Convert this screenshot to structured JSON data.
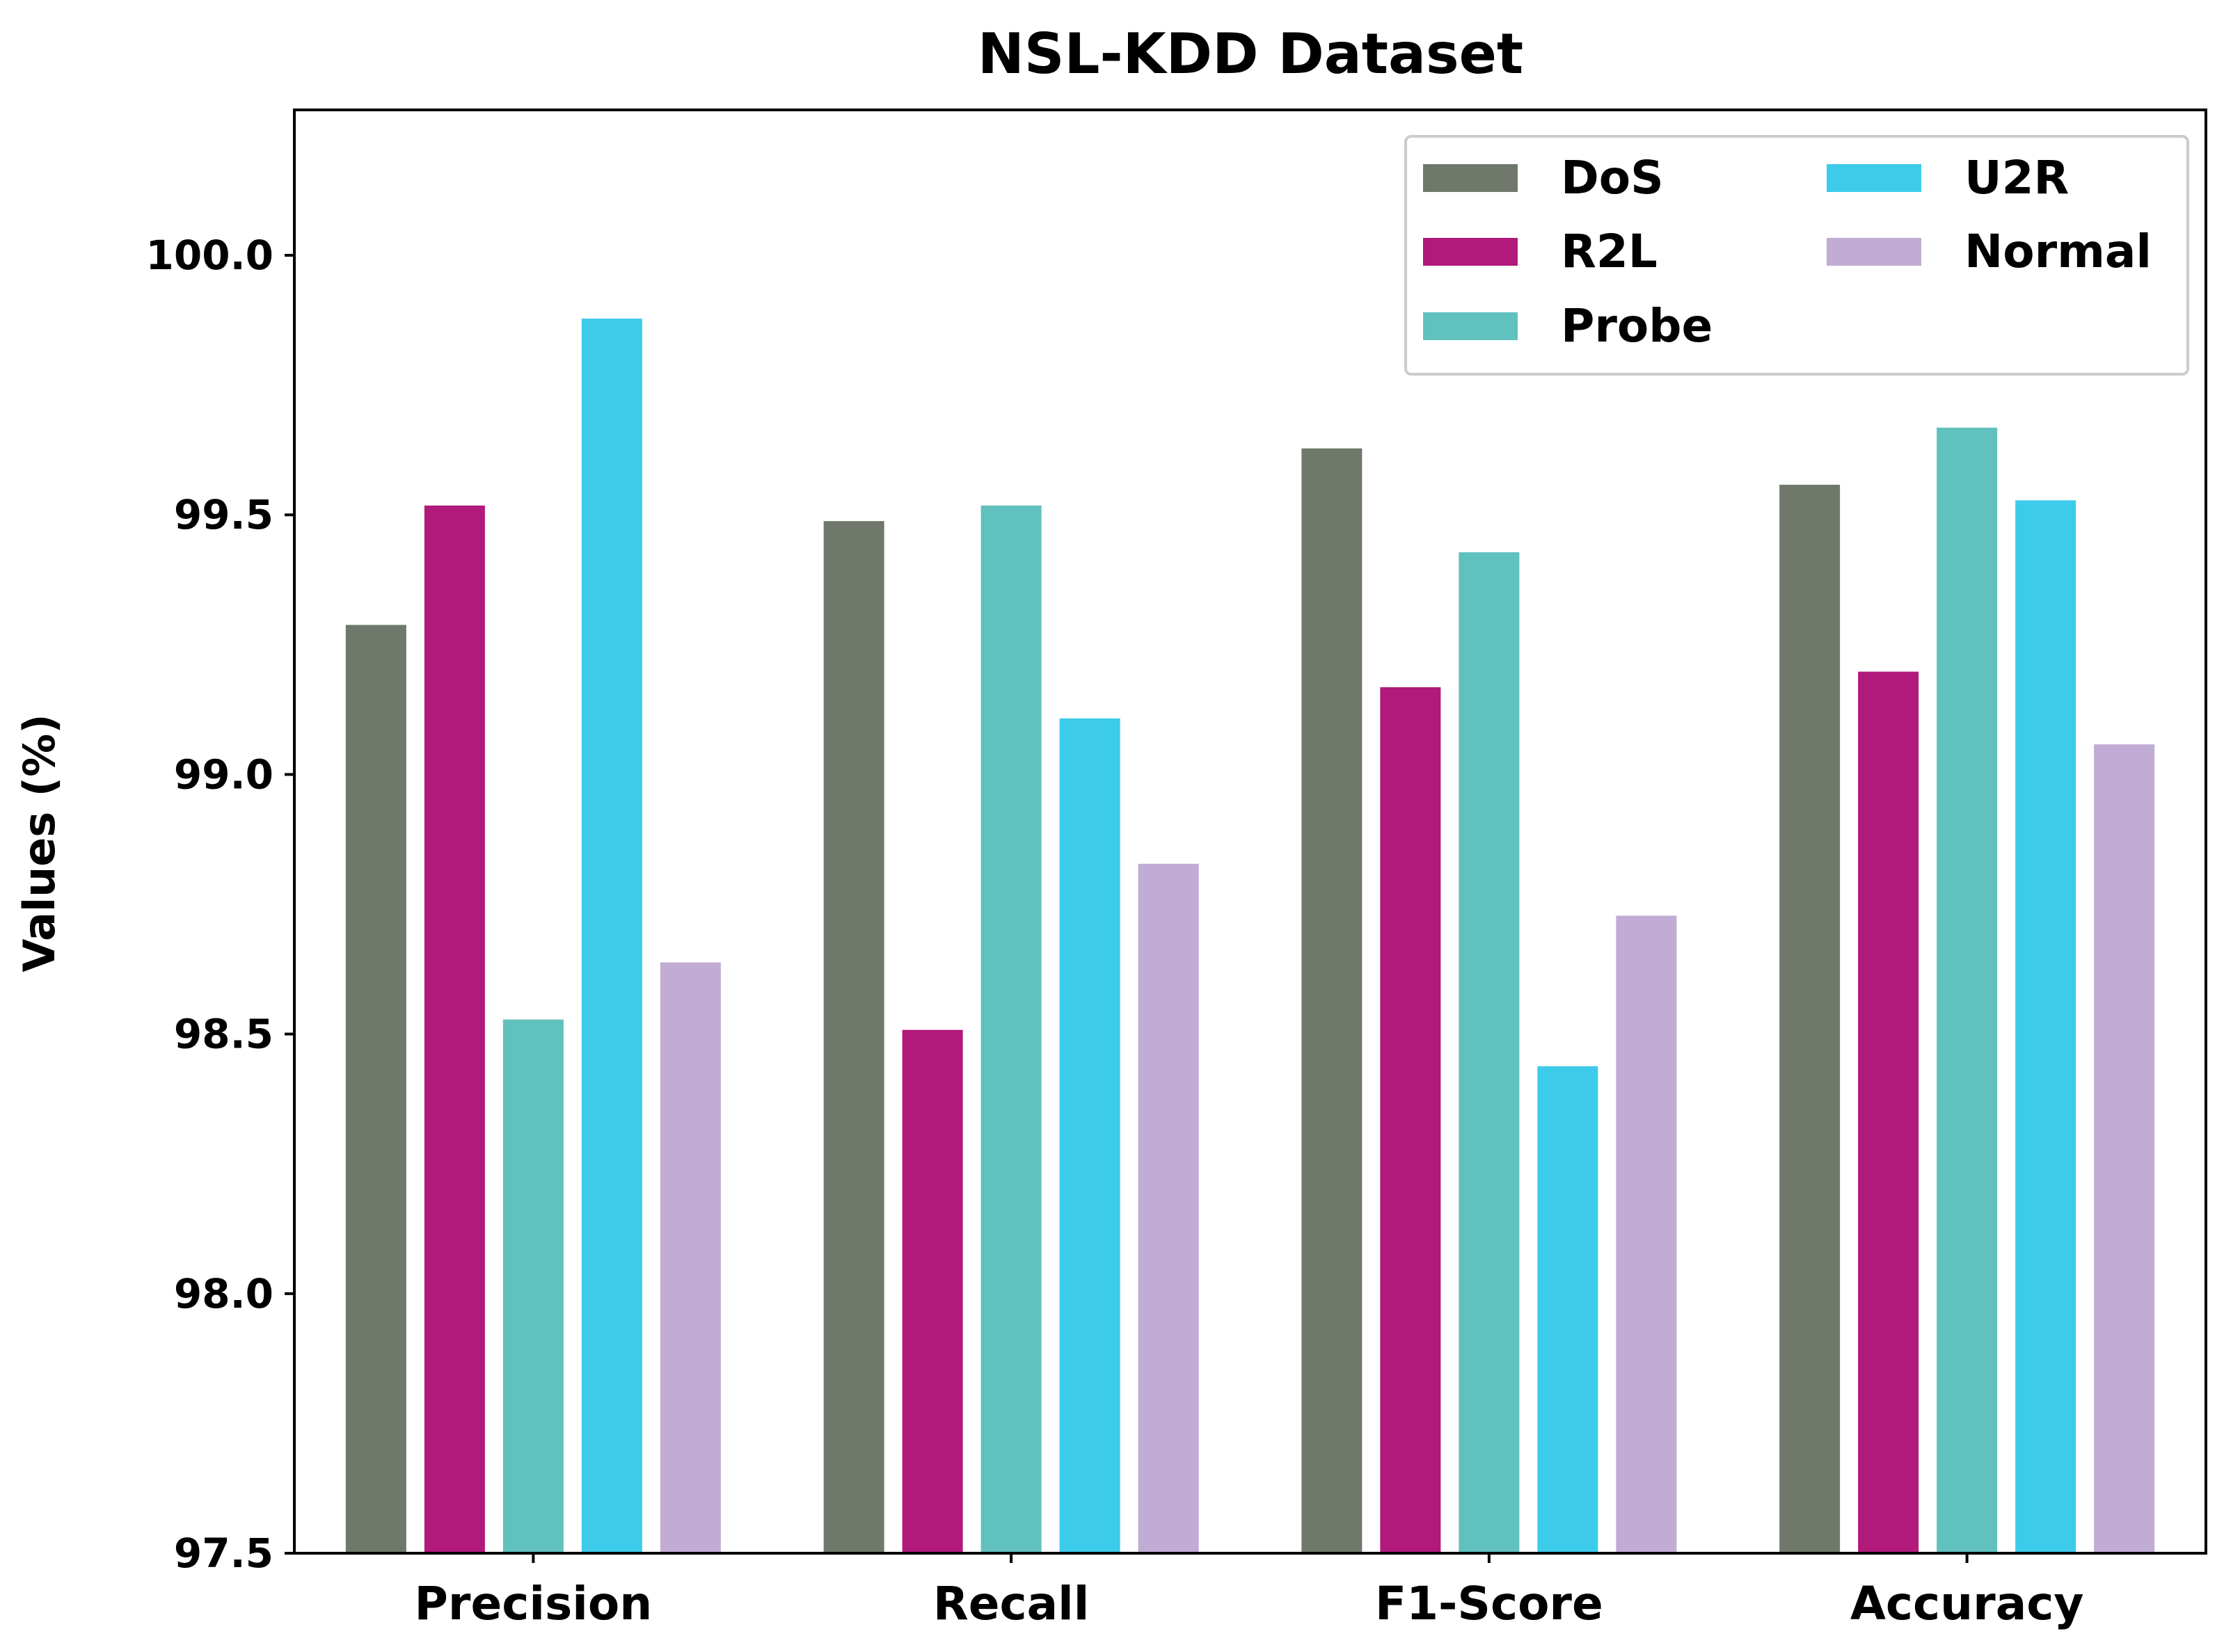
{
  "chart_data": {
    "type": "bar",
    "title": "NSL-KDD Dataset",
    "xlabel": "",
    "ylabel": "Values (%)",
    "ylim": [
      97.5,
      100.28
    ],
    "yticks": [
      97.5,
      98.0,
      98.5,
      99.0,
      99.5,
      100.0
    ],
    "ytick_labels": [
      "97.5",
      "98.0",
      "98.5",
      "99.0",
      "99.5",
      "100.0"
    ],
    "categories": [
      "Precision",
      "Recall",
      "F1-Score",
      "Accuracy"
    ],
    "series": [
      {
        "name": "DoS",
        "color": "#6f786b",
        "values": [
          99.29,
          99.49,
          99.63,
          99.56
        ]
      },
      {
        "name": "R2L",
        "color": "#b1197a",
        "values": [
          99.52,
          98.51,
          99.17,
          99.2
        ]
      },
      {
        "name": "Probe",
        "color": "#60c1be",
        "values": [
          98.53,
          99.52,
          99.43,
          99.67
        ]
      },
      {
        "name": "U2R",
        "color": "#3ccbea",
        "values": [
          99.88,
          99.11,
          98.44,
          99.53
        ]
      },
      {
        "name": "Normal",
        "color": "#c0acd4",
        "values": [
          98.64,
          98.83,
          98.73,
          99.06
        ]
      }
    ],
    "legend": {
      "position": "top-right",
      "columns": 2
    },
    "grid": false
  }
}
